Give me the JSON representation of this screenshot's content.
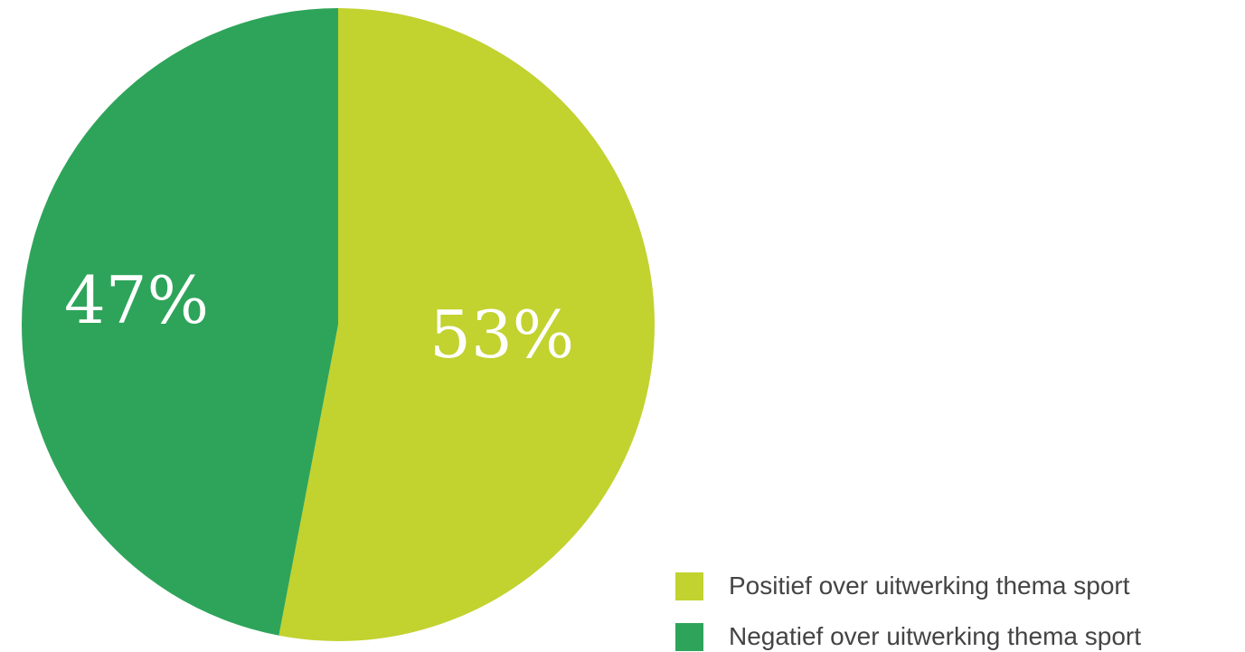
{
  "chart_data": {
    "type": "pie",
    "title": "",
    "categories": [
      "Positief over uitwerking thema sport",
      "Negatief over uitwerking thema sport"
    ],
    "values": [
      53,
      47
    ],
    "data_labels": [
      "53%",
      "47%"
    ],
    "colors": [
      "#c2d22f",
      "#2ea45a"
    ],
    "start": "top",
    "direction": "clockwise",
    "legend_position": "bottom-right"
  },
  "legend": {
    "items": [
      {
        "label": "Positief over uitwerking thema sport",
        "color": "#c2d22f"
      },
      {
        "label": "Negatief over uitwerking thema sport",
        "color": "#2ea45a"
      }
    ]
  }
}
